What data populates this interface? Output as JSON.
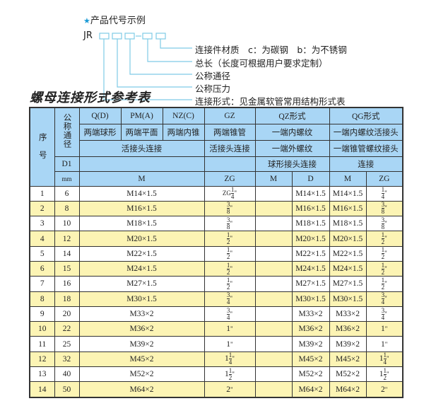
{
  "legend": {
    "title": "产品代号示例",
    "icon": "star-icon",
    "code_prefix": "JR",
    "labels": [
      "连接件材质　c：为碳钢　b：为不锈钢",
      "总长（长度可根据用户要求定制）",
      "公称通径",
      "公称压力",
      "连接形式：见金属软管常用结构形式表"
    ],
    "accent": "#1a9ad6"
  },
  "table_title": "螺母连接形式参考表",
  "header": {
    "seq": "序　号",
    "dn": "公称通径",
    "qd": "Q(D)",
    "pm": "PM(A)",
    "nz": "NZ(C)",
    "gz": "GZ",
    "qz": "QZ形式",
    "qg": "QG形式",
    "qd2": "两端球形",
    "pm2": "两端平面",
    "nz2": "两端内锥",
    "gz2": "两端锥管",
    "qz2": "一端内螺纹",
    "qg2": "一端内螺纹活接头",
    "huo": "活接头连接",
    "gz3": "活接头连接",
    "qz3": "一端外螺纹",
    "qg3": "一端锥管螺纹接头",
    "d1": "D1",
    "qz4": "球形接头连接",
    "qg4": "连接",
    "mm": "mm",
    "m": "M",
    "zg": "ZG",
    "qzm": "M",
    "qzd": "D",
    "qgm": "M",
    "qgzg": "ZG"
  },
  "rows": [
    {
      "no": "1",
      "dn": "6",
      "m": "M14×1.5",
      "zg": {
        "pre": "ZG",
        "w": "",
        "n": "1",
        "d": "4",
        "s": "\""
      },
      "qzm": "",
      "qzd": "M14×1.5",
      "qgm": "M14×1.5",
      "qgzg": {
        "pre": "",
        "w": "",
        "n": "1",
        "d": "4",
        "s": "\""
      }
    },
    {
      "no": "2",
      "dn": "8",
      "m": "M16×1.5",
      "zg": {
        "pre": "",
        "w": "",
        "n": "3",
        "d": "8",
        "s": "\""
      },
      "qzm": "",
      "qzd": "M16×1.5",
      "qgm": "M16×1.5",
      "qgzg": {
        "pre": "",
        "w": "",
        "n": "3",
        "d": "8",
        "s": "\""
      }
    },
    {
      "no": "3",
      "dn": "10",
      "m": "M18×1.5",
      "zg": {
        "pre": "",
        "w": "",
        "n": "3",
        "d": "8",
        "s": "\""
      },
      "qzm": "",
      "qzd": "M18×1.5",
      "qgm": "M18×1.5",
      "qgzg": {
        "pre": "",
        "w": "",
        "n": "3",
        "d": "8",
        "s": "\""
      }
    },
    {
      "no": "4",
      "dn": "12",
      "m": "M20×1.5",
      "zg": {
        "pre": "",
        "w": "",
        "n": "1",
        "d": "2",
        "s": "\""
      },
      "qzm": "",
      "qzd": "M20×1.5",
      "qgm": "M20×1.5",
      "qgzg": {
        "pre": "",
        "w": "",
        "n": "1",
        "d": "2",
        "s": "\""
      }
    },
    {
      "no": "5",
      "dn": "14",
      "m": "M22×1.5",
      "zg": {
        "pre": "",
        "w": "",
        "n": "1",
        "d": "2",
        "s": "\""
      },
      "qzm": "",
      "qzd": "M22×1.5",
      "qgm": "M22×1.5",
      "qgzg": {
        "pre": "",
        "w": "",
        "n": "1",
        "d": "2",
        "s": "\""
      }
    },
    {
      "no": "6",
      "dn": "15",
      "m": "M24×1.5",
      "zg": {
        "pre": "",
        "w": "",
        "n": "1",
        "d": "2",
        "s": "\""
      },
      "qzm": "",
      "qzd": "M24×1.5",
      "qgm": "M24×1.5",
      "qgzg": {
        "pre": "",
        "w": "",
        "n": "1",
        "d": "2",
        "s": "\""
      }
    },
    {
      "no": "7",
      "dn": "16",
      "m": "M27×1.5",
      "zg": {
        "pre": "",
        "w": "",
        "n": "1",
        "d": "2",
        "s": "\""
      },
      "qzm": "",
      "qzd": "M27×1.5",
      "qgm": "M27×1.5",
      "qgzg": {
        "pre": "",
        "w": "",
        "n": "1",
        "d": "2",
        "s": "\""
      }
    },
    {
      "no": "8",
      "dn": "18",
      "m": "M30×1.5",
      "zg": {
        "pre": "",
        "w": "",
        "n": "3",
        "d": "4",
        "s": "\""
      },
      "qzm": "",
      "qzd": "M30×1.5",
      "qgm": "M30×1.5",
      "qgzg": {
        "pre": "",
        "w": "",
        "n": "3",
        "d": "4",
        "s": "\""
      }
    },
    {
      "no": "9",
      "dn": "20",
      "m": "M33×2",
      "zg": {
        "pre": "",
        "w": "",
        "n": "3",
        "d": "4",
        "s": "\""
      },
      "qzm": "",
      "qzd": "M33×2",
      "qgm": "M33×2",
      "qgzg": {
        "pre": "",
        "w": "",
        "n": "3",
        "d": "4",
        "s": "\""
      }
    },
    {
      "no": "10",
      "dn": "22",
      "m": "M36×2",
      "zg": {
        "pre": "",
        "w": "1",
        "n": "",
        "d": "",
        "s": "\""
      },
      "qzm": "",
      "qzd": "M36×2",
      "qgm": "M36×2",
      "qgzg": {
        "pre": "",
        "w": "1",
        "n": "",
        "d": "",
        "s": "\""
      }
    },
    {
      "no": "11",
      "dn": "25",
      "m": "M39×2",
      "zg": {
        "pre": "",
        "w": "1",
        "n": "",
        "d": "",
        "s": "\""
      },
      "qzm": "",
      "qzd": "M39×2",
      "qgm": "M39×2",
      "qgzg": {
        "pre": "",
        "w": "1",
        "n": "",
        "d": "",
        "s": "\""
      }
    },
    {
      "no": "12",
      "dn": "32",
      "m": "M45×2",
      "zg": {
        "pre": "",
        "w": "1",
        "n": "1",
        "d": "4",
        "s": "\""
      },
      "qzm": "",
      "qzd": "M45×2",
      "qgm": "M45×2",
      "qgzg": {
        "pre": "",
        "w": "1",
        "n": "1",
        "d": "4",
        "s": "\""
      }
    },
    {
      "no": "13",
      "dn": "40",
      "m": "M52×2",
      "zg": {
        "pre": "",
        "w": "1",
        "n": "1",
        "d": "2",
        "s": "\""
      },
      "qzm": "",
      "qzd": "M52×2",
      "qgm": "M52×2",
      "qgzg": {
        "pre": "",
        "w": "1",
        "n": "1",
        "d": "2",
        "s": "\""
      }
    },
    {
      "no": "14",
      "dn": "50",
      "m": "M64×2",
      "zg": {
        "pre": "",
        "w": "2",
        "n": "",
        "d": "",
        "s": "\""
      },
      "qzm": "",
      "qzd": "M64×2",
      "qgm": "M64×2",
      "qgzg": {
        "pre": "",
        "w": "2",
        "n": "",
        "d": "",
        "s": "\""
      }
    }
  ],
  "colors": {
    "header_bg": "#a9d6f5",
    "alt_row_bg": "#fcf4b4",
    "connector": "#7fcbe6"
  }
}
